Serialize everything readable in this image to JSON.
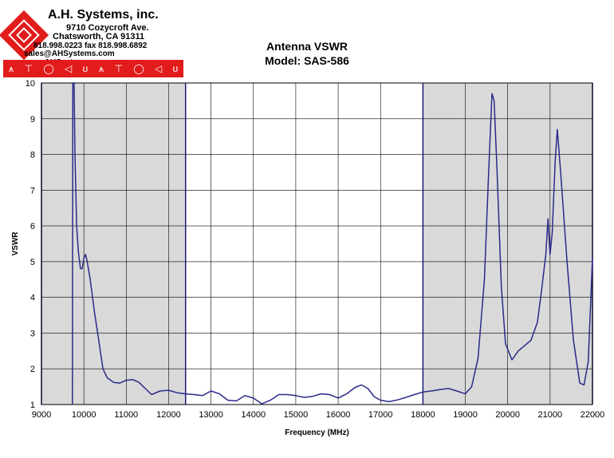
{
  "header": {
    "company": "A.H. Systems, inc.",
    "address_line1": "9710 Cozycroft Ave.",
    "address_line2": "Chatsworth, CA 91311",
    "phone": "818.998.0223 fax 818.998.6892",
    "email": "sales@AHSystems.com www.AHSystems.com",
    "icons": [
      "tree-antenna-icon",
      "dipole-antenna-icon",
      "loop-antenna-icon",
      "horn-antenna-icon",
      "biconical-antenna-icon",
      "tree-antenna-icon",
      "dipole-antenna-icon",
      "loop-antenna-icon",
      "horn-antenna-icon",
      "biconical-antenna-icon"
    ],
    "brand_color": "#e21b1b"
  },
  "chart_data": {
    "type": "line",
    "title": "Antenna VSWR",
    "subtitle": "Model: SAS-586",
    "xlabel": "Frequency (MHz)",
    "ylabel": "VSWR",
    "xlim": [
      9000,
      22000
    ],
    "ylim": [
      1,
      10
    ],
    "x_ticks": [
      "9000",
      "10000",
      "11000",
      "12000",
      "13000",
      "14000",
      "15000",
      "16000",
      "17000",
      "18000",
      "19000",
      "20000",
      "21000",
      "22000"
    ],
    "y_ticks": [
      "1",
      "2",
      "3",
      "4",
      "5",
      "6",
      "7",
      "8",
      "9",
      "10"
    ],
    "grid": true,
    "shaded_ranges": [
      [
        9000,
        12400
      ],
      [
        18000,
        22000
      ]
    ],
    "line_color": "#2a2a8a",
    "shade_color": "#d9d9d9",
    "series": [
      {
        "points": [
          [
            9730,
            1
          ],
          [
            9740,
            10
          ],
          [
            9770,
            10
          ],
          [
            9790,
            8
          ],
          [
            9830,
            6
          ],
          [
            9870,
            5.3
          ],
          [
            9920,
            4.8
          ],
          [
            9960,
            4.8
          ],
          [
            10000,
            5.1
          ],
          [
            10040,
            5.2
          ],
          [
            10080,
            5.0
          ],
          [
            10150,
            4.5
          ],
          [
            10250,
            3.6
          ],
          [
            10350,
            2.8
          ],
          [
            10450,
            2.0
          ],
          [
            10550,
            1.75
          ],
          [
            10700,
            1.62
          ],
          [
            10850,
            1.6
          ],
          [
            11000,
            1.68
          ],
          [
            11150,
            1.7
          ],
          [
            11300,
            1.62
          ],
          [
            11450,
            1.45
          ],
          [
            11600,
            1.28
          ],
          [
            11800,
            1.38
          ],
          [
            12000,
            1.4
          ],
          [
            12200,
            1.33
          ],
          [
            12400,
            1.3
          ],
          [
            12600,
            1.28
          ],
          [
            12800,
            1.25
          ],
          [
            13000,
            1.38
          ],
          [
            13200,
            1.3
          ],
          [
            13400,
            1.12
          ],
          [
            13600,
            1.1
          ],
          [
            13800,
            1.25
          ],
          [
            14000,
            1.18
          ],
          [
            14200,
            1.02
          ],
          [
            14400,
            1.12
          ],
          [
            14600,
            1.28
          ],
          [
            14800,
            1.28
          ],
          [
            15000,
            1.25
          ],
          [
            15200,
            1.2
          ],
          [
            15400,
            1.23
          ],
          [
            15600,
            1.3
          ],
          [
            15800,
            1.28
          ],
          [
            16000,
            1.18
          ],
          [
            16200,
            1.3
          ],
          [
            16400,
            1.48
          ],
          [
            16550,
            1.55
          ],
          [
            16700,
            1.45
          ],
          [
            16850,
            1.22
          ],
          [
            17000,
            1.12
          ],
          [
            17200,
            1.08
          ],
          [
            17400,
            1.13
          ],
          [
            17600,
            1.2
          ],
          [
            17800,
            1.28
          ],
          [
            18000,
            1.35
          ],
          [
            18200,
            1.38
          ],
          [
            18400,
            1.42
          ],
          [
            18600,
            1.45
          ],
          [
            18800,
            1.38
          ],
          [
            19000,
            1.3
          ],
          [
            19150,
            1.5
          ],
          [
            19300,
            2.3
          ],
          [
            19450,
            4.5
          ],
          [
            19550,
            7.5
          ],
          [
            19630,
            9.7
          ],
          [
            19680,
            9.5
          ],
          [
            19750,
            7.5
          ],
          [
            19850,
            4.3
          ],
          [
            19950,
            2.7
          ],
          [
            20100,
            2.25
          ],
          [
            20250,
            2.5
          ],
          [
            20400,
            2.65
          ],
          [
            20550,
            2.8
          ],
          [
            20700,
            3.3
          ],
          [
            20800,
            4.2
          ],
          [
            20900,
            5.2
          ],
          [
            20950,
            6.2
          ],
          [
            21000,
            5.2
          ],
          [
            21050,
            5.8
          ],
          [
            21120,
            7.8
          ],
          [
            21170,
            8.7
          ],
          [
            21250,
            7.5
          ],
          [
            21400,
            5.0
          ],
          [
            21550,
            2.8
          ],
          [
            21700,
            1.6
          ],
          [
            21800,
            1.55
          ],
          [
            21900,
            2.2
          ],
          [
            22000,
            5.1
          ]
        ]
      }
    ]
  }
}
